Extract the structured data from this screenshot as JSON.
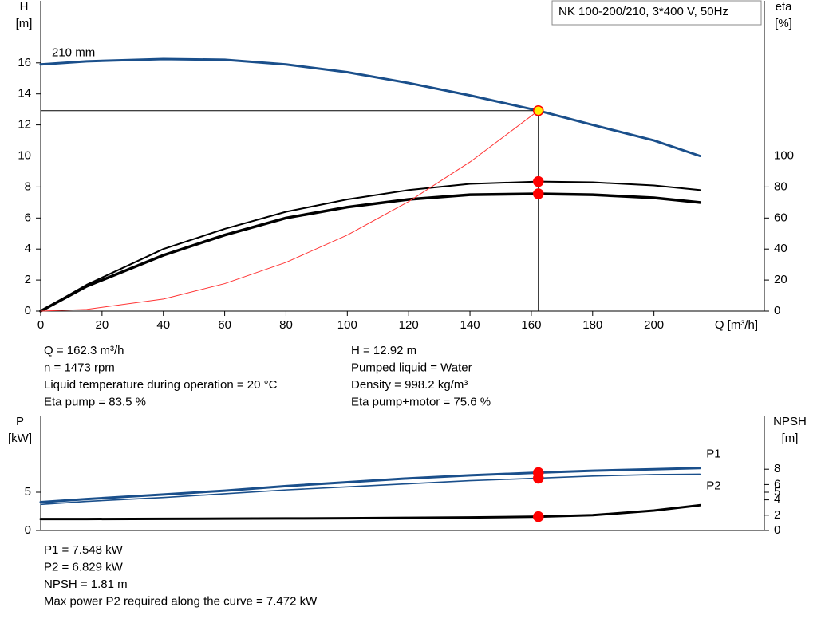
{
  "chart_data": [
    {
      "type": "line",
      "title": "NK 100-200/210, 3*400 V, 50Hz",
      "xlabel": "Q [m³/h]",
      "ylabel": [
        "H",
        "[m]"
      ],
      "y2label": [
        "eta",
        "[%]"
      ],
      "x": [
        0,
        15,
        40,
        60,
        80,
        100,
        120,
        140,
        162.3,
        180,
        200,
        215
      ],
      "xlim": [
        0,
        236
      ],
      "xticks": [
        0,
        20,
        40,
        60,
        80,
        100,
        120,
        140,
        160,
        180,
        200
      ],
      "ylim": [
        0,
        20
      ],
      "yticks": [
        0,
        2,
        4,
        6,
        8,
        10,
        12,
        14,
        16
      ],
      "y2lim": [
        0,
        200
      ],
      "y2ticks": [
        0,
        20,
        40,
        60,
        80,
        100
      ],
      "highlight_x": 162.3,
      "reference_lines": true,
      "series": [
        {
          "name": "210 mm",
          "color": "#1a4f8b",
          "width": 3,
          "marker_color": "#ffee00",
          "values": [
            15.9,
            16.1,
            16.25,
            16.2,
            15.9,
            15.4,
            14.7,
            13.9,
            12.92,
            12.0,
            11.0,
            10.0
          ]
        },
        {
          "color": "#000000",
          "width": 2,
          "axis": "y2",
          "marker_color": "#ff0000",
          "values": [
            0,
            17,
            40,
            53,
            64,
            72,
            78,
            82,
            83.5,
            83,
            81,
            78
          ]
        },
        {
          "color": "#000000",
          "width": 3.5,
          "axis": "y2",
          "marker_color": "#ff0000",
          "values": [
            0,
            16,
            36,
            49,
            60,
            67,
            72,
            75,
            75.6,
            75,
            73,
            70
          ]
        },
        {
          "color": "#ff3333",
          "width": 1,
          "values": [
            0,
            0.11,
            0.78,
            1.77,
            3.14,
            4.9,
            7.06,
            9.61,
            12.92,
            null,
            null,
            null
          ]
        }
      ]
    },
    {
      "type": "line",
      "ylabel": [
        "P",
        "[kW]"
      ],
      "y2label": [
        "NPSH",
        "[m]"
      ],
      "x": [
        0,
        15,
        40,
        60,
        80,
        100,
        120,
        140,
        162.3,
        180,
        200,
        215
      ],
      "xlim": [
        0,
        236
      ],
      "ylim": [
        0,
        15
      ],
      "yticks": [
        0,
        5
      ],
      "y2lim": [
        0,
        15
      ],
      "y2ticks": [
        0,
        2,
        4,
        5,
        6,
        8
      ],
      "highlight_x": 162.3,
      "series": [
        {
          "name": "P1",
          "color": "#1a4f8b",
          "width": 3,
          "marker_color": "#ff0000",
          "values": [
            3.7,
            4.1,
            4.7,
            5.2,
            5.8,
            6.3,
            6.8,
            7.2,
            7.548,
            7.8,
            8.0,
            8.15
          ]
        },
        {
          "name": "P2",
          "color": "#1a4f8b",
          "width": 1.6,
          "marker_color": "#ff0000",
          "values": [
            3.4,
            3.8,
            4.3,
            4.8,
            5.3,
            5.7,
            6.1,
            6.5,
            6.829,
            7.1,
            7.3,
            7.35
          ]
        },
        {
          "color": "#000000",
          "width": 3,
          "axis": "y2",
          "marker_color": "#ff0000",
          "values": [
            1.5,
            1.5,
            1.52,
            1.55,
            1.57,
            1.6,
            1.65,
            1.7,
            1.81,
            2.0,
            2.6,
            3.3
          ]
        }
      ]
    }
  ],
  "info_top": {
    "left": [
      "Q = 162.3 m³/h",
      "n = 1473 rpm",
      "Liquid temperature during operation = 20 °C",
      "Eta pump = 83.5 %"
    ],
    "right": [
      "H = 12.92 m",
      "Pumped liquid = Water",
      "Density = 998.2 kg/m³",
      "Eta pump+motor = 75.6 %"
    ]
  },
  "info_bottom": [
    "P1 = 7.548 kW",
    "P2 = 6.829 kW",
    "NPSH = 1.81 m",
    "Max power P2 required along the curve = 7.472 kW"
  ]
}
